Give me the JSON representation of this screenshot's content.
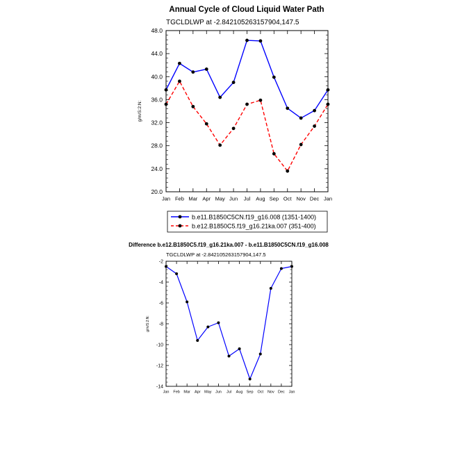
{
  "chart_data": [
    {
      "type": "line",
      "title": "Annual Cycle of Cloud Liquid Water Path",
      "subtitle": "TGCLDLWP at -2.842105263157904,147.5",
      "xlabel": "",
      "ylabel": "g/m/S:2:N:",
      "categories": [
        "Jan",
        "Feb",
        "Mar",
        "Apr",
        "May",
        "Jun",
        "Jul",
        "Aug",
        "Sep",
        "Oct",
        "Nov",
        "Dec",
        "Jan"
      ],
      "ylim": [
        20,
        48
      ],
      "yticks": [
        20,
        24,
        28,
        32,
        36,
        40,
        44,
        48
      ],
      "ytick_labels": [
        "20.0",
        "24.0",
        "28.0",
        "32.0",
        "36.0",
        "40.0",
        "44.0",
        "48.0"
      ],
      "series": [
        {
          "name": "b.e11.B1850C5CN.f19_g16.008 (1351-1400)",
          "color": "#0000ff",
          "dash": "solid",
          "values": [
            37.7,
            42.3,
            40.8,
            41.3,
            36.4,
            39.0,
            46.3,
            46.2,
            39.9,
            34.5,
            32.8,
            34.1,
            37.7
          ]
        },
        {
          "name": "b.e12.B1850C5.f19_g16.21ka.007 (351-400)",
          "color": "#ff0000",
          "dash": "dashed",
          "values": [
            35.2,
            39.2,
            34.8,
            31.8,
            28.1,
            31.0,
            35.2,
            35.9,
            26.6,
            23.6,
            28.2,
            31.4,
            35.2
          ]
        }
      ],
      "legend_position": "bottom"
    },
    {
      "type": "line",
      "title": "Difference b.e12.B1850C5.f19_g16.21ka.007 - b.e11.B1850C5CN.f19_g16.008",
      "subtitle": "TGCLDLWP at -2.842105263157904,147.5",
      "xlabel": "",
      "ylabel": "g/m/S:2:N:",
      "categories": [
        "Jan",
        "Feb",
        "Mar",
        "Apr",
        "May",
        "Jun",
        "Jul",
        "Aug",
        "Sep",
        "Oct",
        "Nov",
        "Dec",
        "Jan"
      ],
      "ylim": [
        -14,
        -2
      ],
      "yticks": [
        -14,
        -12,
        -10,
        -8,
        -6,
        -4,
        -2
      ],
      "ytick_labels": [
        "-14",
        "-12",
        "-10",
        "-8",
        "-6",
        "-4",
        "-2"
      ],
      "series": [
        {
          "name": "difference",
          "color": "#0000ff",
          "dash": "solid",
          "values": [
            -2.5,
            -3.2,
            -5.9,
            -9.6,
            -8.3,
            -7.9,
            -11.1,
            -10.4,
            -13.3,
            -10.9,
            -4.6,
            -2.7,
            -2.5
          ]
        }
      ]
    }
  ]
}
